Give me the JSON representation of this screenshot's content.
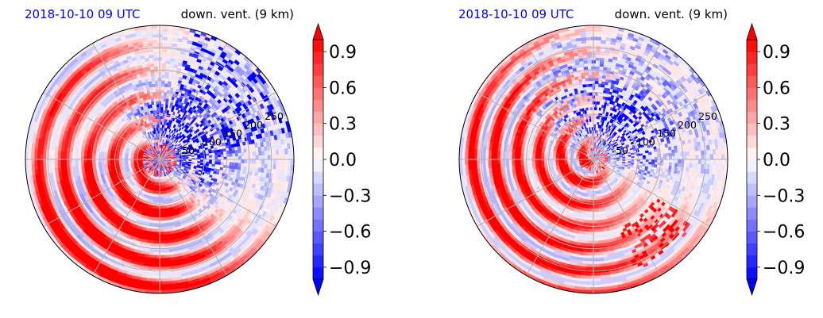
{
  "chart_data": [
    {
      "type": "heatmap",
      "projection": "polar",
      "title_left": "2018-10-10 09 UTC",
      "title_right": "down. vent. (9 km)",
      "title_left_color": "#0000ff",
      "radial_ticks": [
        "50",
        "100",
        "150",
        "200",
        "250"
      ],
      "radial_tick_values": [
        50,
        100,
        150,
        200,
        250
      ],
      "r_max": 300,
      "grid": true,
      "colorbar": {
        "ticks": [
          "−0.9",
          "−0.6",
          "−0.3",
          "0.0",
          "0.3",
          "0.6",
          "0.9"
        ],
        "tick_values": [
          -0.9,
          -0.6,
          -0.3,
          0.0,
          0.3,
          0.6,
          0.9
        ],
        "range": [
          -1.0,
          1.0
        ],
        "extend": "both",
        "colormap": "bwr"
      },
      "pattern": "red bands wrapping west and south; blue cells clustered north-east of the center"
    },
    {
      "type": "heatmap",
      "projection": "polar",
      "title_left": "2018-10-10 09 UTC",
      "title_right": "down. vent. (9 km)",
      "title_left_color": "#0000ff",
      "radial_ticks": [
        "50",
        "100",
        "150",
        "200",
        "250"
      ],
      "radial_tick_values": [
        50,
        100,
        150,
        200,
        250
      ],
      "r_max": 300,
      "grid": true,
      "colorbar": {
        "ticks": [
          "−0.9",
          "−0.6",
          "−0.3",
          "0.0",
          "0.3",
          "0.6",
          "0.9"
        ],
        "tick_values": [
          -0.9,
          -0.6,
          -0.3,
          0.0,
          0.3,
          0.6,
          0.9
        ],
        "range": [
          -1.0,
          1.0
        ],
        "extend": "both",
        "colormap": "bwr"
      },
      "pattern": "spiral red bands wrapping west and south; scattered blue cells north and east"
    }
  ]
}
